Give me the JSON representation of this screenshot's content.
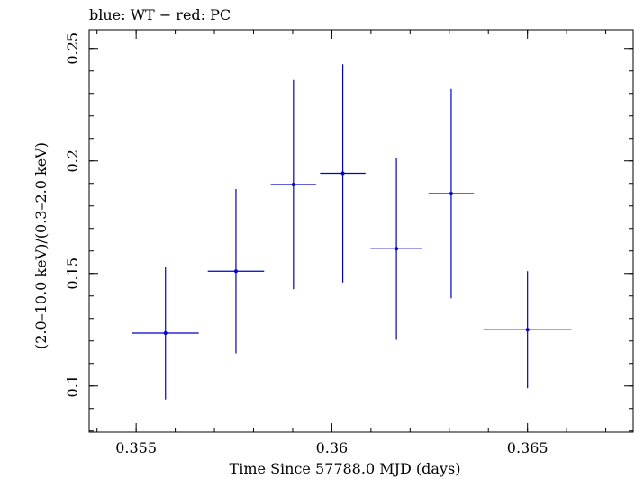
{
  "chart_data": {
    "type": "scatter",
    "title": "blue: WT − red: PC",
    "xlabel": "Time Since 57788.0 MJD (days)",
    "ylabel": "(2.0–10.0 keV)/(0.3–2.0 keV)",
    "xlim": [
      0.3538,
      0.3677
    ],
    "ylim": [
      0.0795,
      0.2583
    ],
    "x_ticks": [
      0.355,
      0.36,
      0.365
    ],
    "x_tick_labels": [
      "0.355",
      "0.36",
      "0.365"
    ],
    "y_ticks": [
      0.1,
      0.15,
      0.2,
      0.25
    ],
    "y_tick_labels": [
      "0.1",
      "0.15",
      "0.2",
      "0.25"
    ],
    "grid": false,
    "series": [
      {
        "color": "#0000cc",
        "points": [
          {
            "x": 0.35575,
            "y": 0.1235,
            "xerr": 0.00085,
            "yerr_low": 0.0295,
            "yerr_high": 0.0295
          },
          {
            "x": 0.35755,
            "y": 0.151,
            "xerr": 0.00072,
            "yerr_low": 0.0365,
            "yerr_high": 0.0365
          },
          {
            "x": 0.35902,
            "y": 0.1895,
            "xerr": 0.00058,
            "yerr_low": 0.0465,
            "yerr_high": 0.0465
          },
          {
            "x": 0.36028,
            "y": 0.1945,
            "xerr": 0.00058,
            "yerr_low": 0.0485,
            "yerr_high": 0.0485
          },
          {
            "x": 0.36165,
            "y": 0.161,
            "xerr": 0.00066,
            "yerr_low": 0.0405,
            "yerr_high": 0.0405
          },
          {
            "x": 0.36305,
            "y": 0.1855,
            "xerr": 0.00058,
            "yerr_low": 0.0465,
            "yerr_high": 0.0465
          },
          {
            "x": 0.365,
            "y": 0.125,
            "xerr": 0.00112,
            "yerr_low": 0.026,
            "yerr_high": 0.026
          }
        ]
      }
    ]
  }
}
